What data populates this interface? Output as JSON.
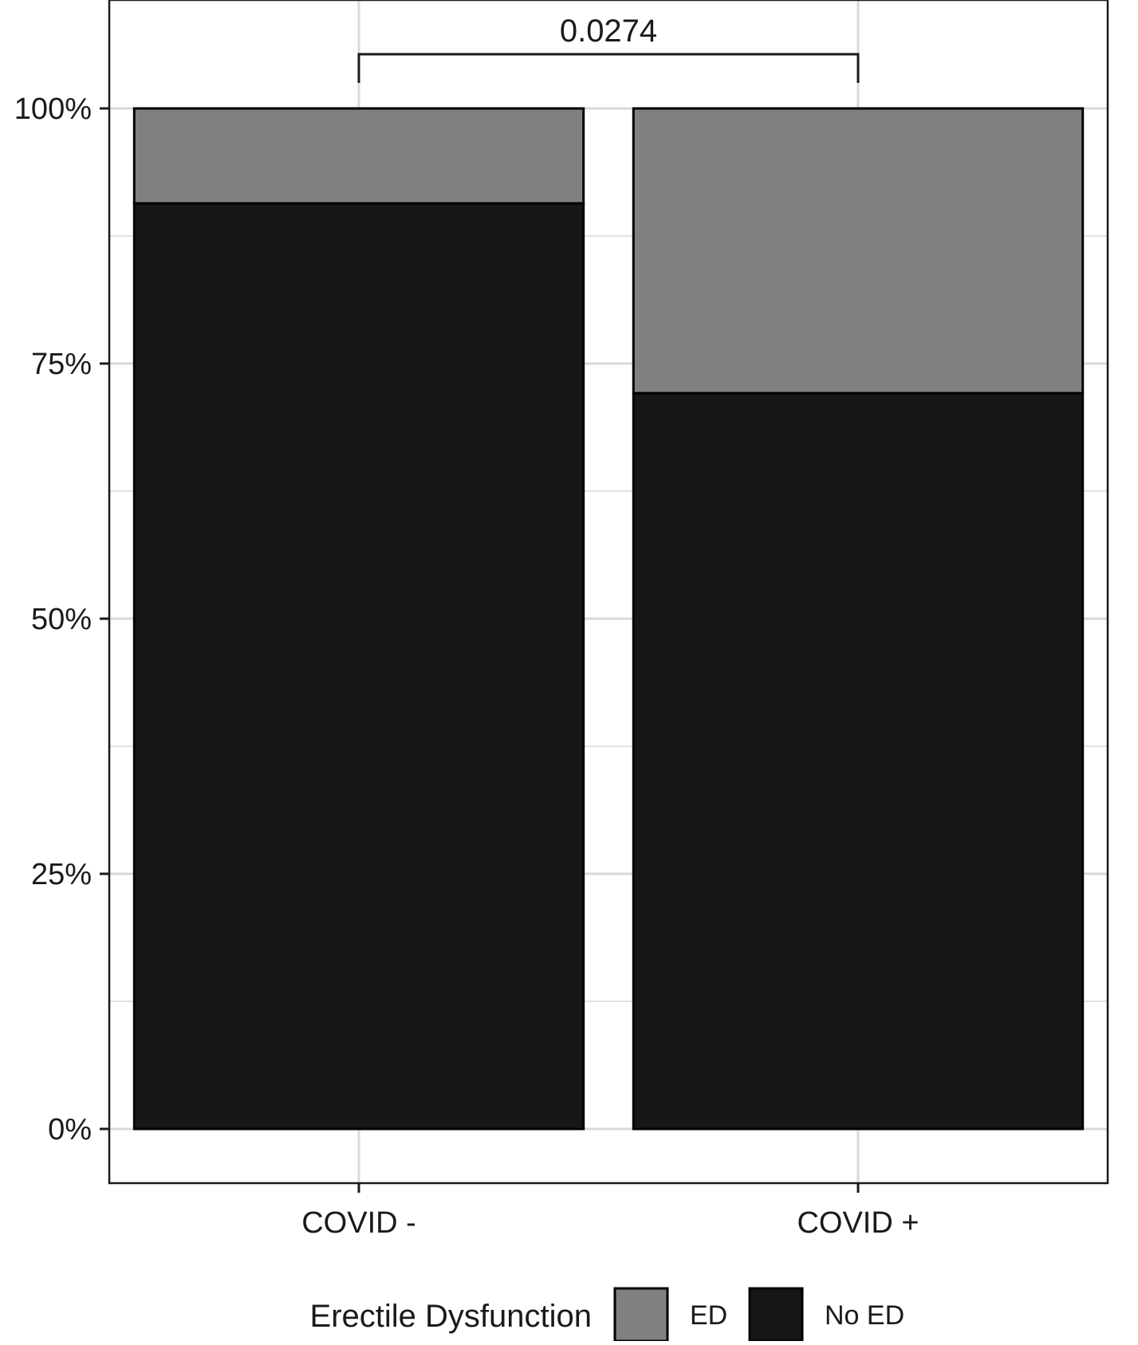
{
  "chart_data": {
    "type": "bar",
    "stacked": true,
    "percent_scale": true,
    "categories": [
      "COVID -",
      "COVID +"
    ],
    "series": [
      {
        "name": "No ED",
        "values": [
          90.7,
          72.1
        ],
        "color": "#171717"
      },
      {
        "name": "ED",
        "values": [
          9.3,
          27.9
        ],
        "color": "#808080"
      }
    ],
    "yticks": [
      "0%",
      "25%",
      "50%",
      "75%",
      "100%"
    ],
    "ylim": [
      -5,
      105
    ],
    "grid": true,
    "significance": {
      "label": "0.0274",
      "from": "COVID -",
      "to": "COVID +"
    },
    "legend": {
      "title": "Erectile Dysfunction",
      "position": "bottom",
      "items": [
        {
          "label": "ED",
          "color": "#808080"
        },
        {
          "label": "No ED",
          "color": "#171717"
        }
      ]
    },
    "title": "",
    "xlabel": "",
    "ylabel": ""
  }
}
